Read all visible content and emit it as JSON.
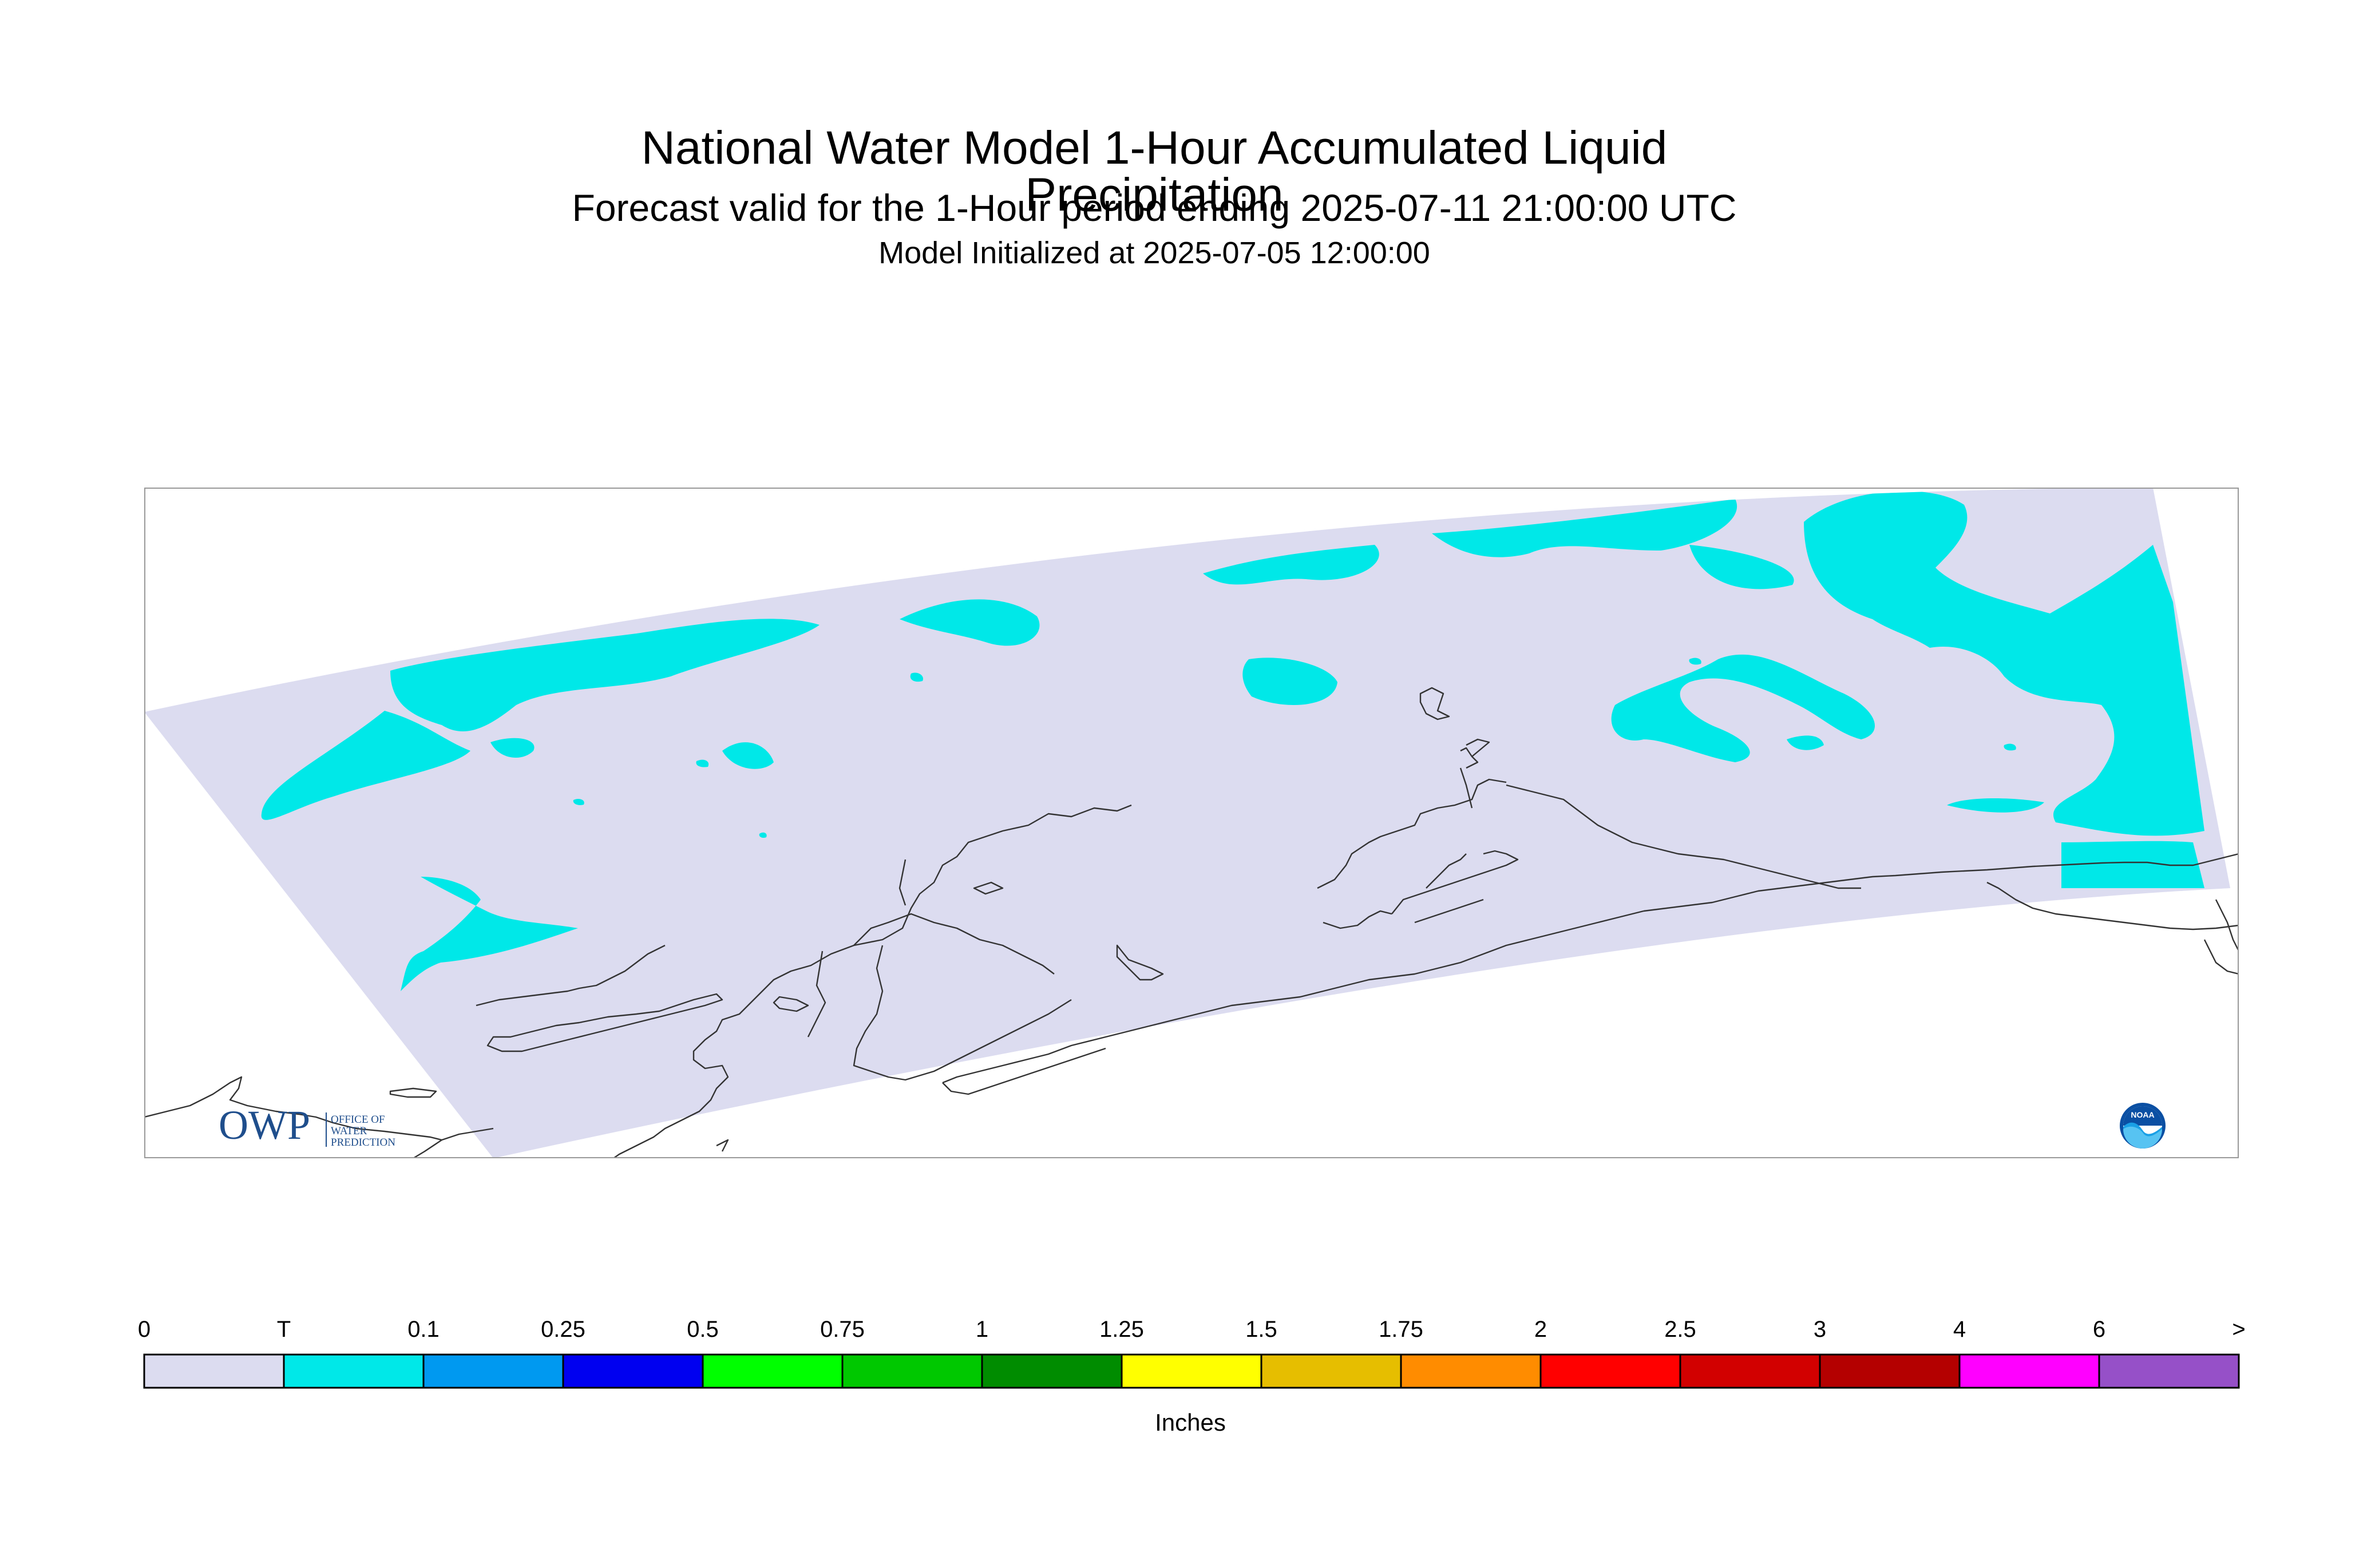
{
  "title": {
    "main": "National Water Model 1-Hour Accumulated Liquid Precipitation",
    "sub": "Forecast valid for the 1-Hour period ending 2025-07-11 21:00:00 UTC",
    "init": "Model Initialized at 2025-07-05 12:00:00"
  },
  "logos": {
    "owp_mark": "OWP",
    "owp_text": [
      "OFFICE OF",
      "WATER",
      "PREDICTION"
    ],
    "noaa_text": "NOAA"
  },
  "colors": {
    "domain_fill": "#dcdcf0",
    "trace_fill": "#00e8e8",
    "coastline": "#333333",
    "frame": "#999999"
  },
  "legend": {
    "units": "Inches",
    "tick_labels": [
      "0",
      "T",
      "0.1",
      "0.25",
      "0.5",
      "0.75",
      "1",
      "1.25",
      "1.5",
      "1.75",
      "2",
      "2.5",
      "3",
      "4",
      "6",
      ">"
    ],
    "colors": [
      "#dcdcf0",
      "#00e8e8",
      "#0099f0",
      "#0000f0",
      "#00ff00",
      "#00c800",
      "#008c00",
      "#ffff00",
      "#e6be00",
      "#ff8c00",
      "#ff0000",
      "#d20000",
      "#b40000",
      "#ff00ff",
      "#9650c8"
    ]
  }
}
